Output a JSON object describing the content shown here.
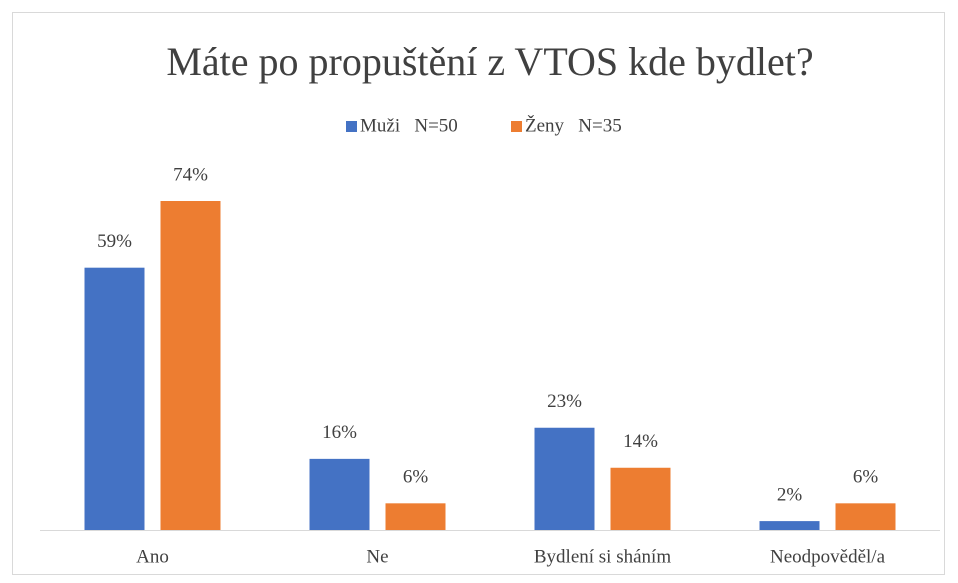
{
  "chart_data": {
    "type": "bar",
    "title": "Máte po propuštění z VTOS kde bydlet?",
    "categories": [
      "Ano",
      "Ne",
      "Bydlení si sháním",
      "Neodpověděl/a"
    ],
    "series": [
      {
        "name": "Muži   N=50",
        "color": "#4472c4",
        "values": [
          59,
          16,
          23,
          2
        ],
        "value_labels": [
          "59%",
          "16%",
          "23%",
          "2%"
        ]
      },
      {
        "name": "Ženy   N=35",
        "color": "#ed7d31",
        "values": [
          74,
          6,
          14,
          6
        ],
        "value_labels": [
          "74%",
          "6%",
          "14%",
          "6%"
        ]
      }
    ],
    "legend": "top"
  }
}
